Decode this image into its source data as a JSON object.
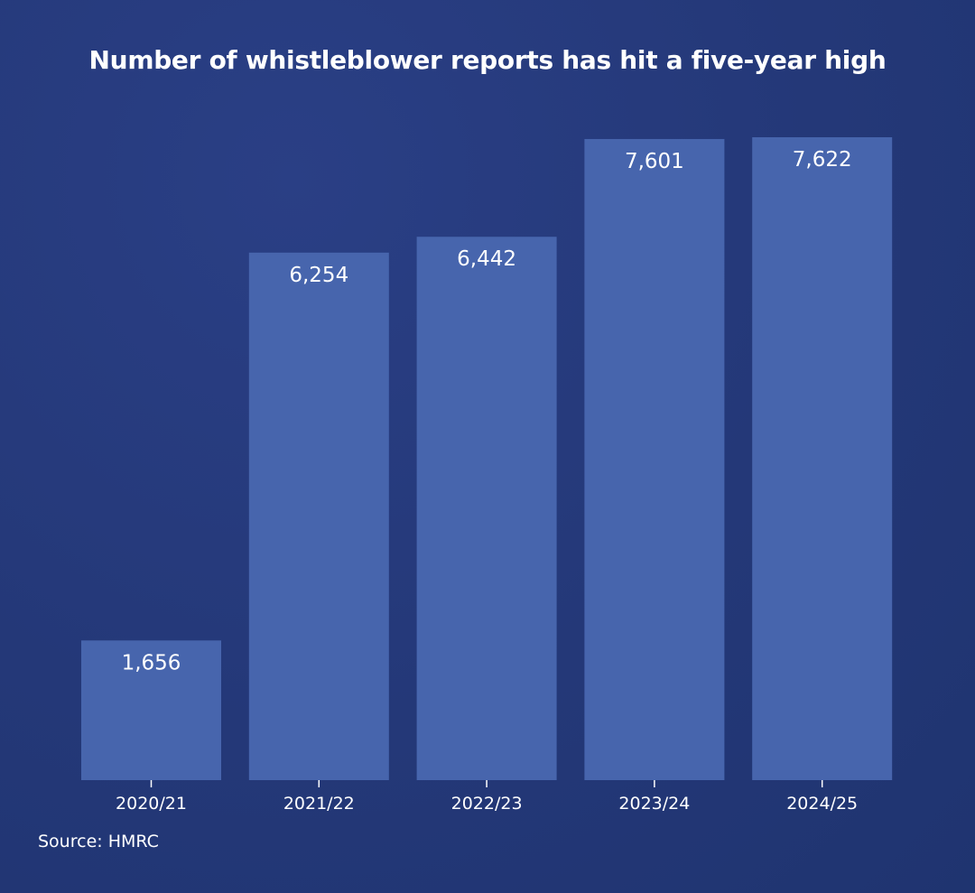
{
  "chart_data": {
    "type": "bar",
    "title": "Number of whistleblower reports has hit a five-year high",
    "categories": [
      "2020/21",
      "2021/22",
      "2022/23",
      "2023/24",
      "2024/25"
    ],
    "values": [
      1656,
      6254,
      6442,
      7601,
      7622
    ],
    "value_labels": [
      "1,656",
      "6,254",
      "6,442",
      "7,601",
      "7,622"
    ],
    "xlabel": "",
    "ylabel": "",
    "ylim": [
      0,
      7622
    ],
    "grid": false,
    "legend": "none",
    "bar_color": "#4765ad",
    "background_color": "#243878",
    "source": "Source: HMRC"
  }
}
